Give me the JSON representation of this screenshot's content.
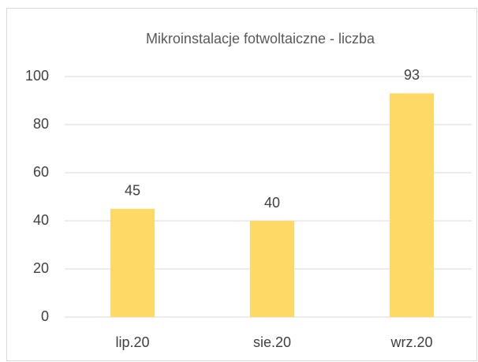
{
  "chart_data": {
    "type": "bar",
    "title": "Mikroinstalacje fotwoltaiczne - liczba",
    "categories": [
      "lip.20",
      "sie.20",
      "wrz.20"
    ],
    "values": [
      45,
      40,
      93
    ],
    "color": "#ffd966",
    "ylim": [
      0,
      100
    ],
    "yticks": [
      0,
      20,
      40,
      60,
      80,
      100
    ],
    "grid": true
  }
}
